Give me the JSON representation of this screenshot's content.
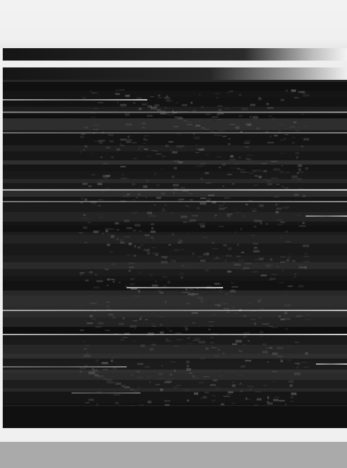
{
  "colors": {
    "page_background": "#f1f1f1",
    "image_background": "#1c1c1c",
    "footer_bar": "#aaaaaa"
  },
  "image": {
    "description_icon": "scanline-distorted-image"
  }
}
